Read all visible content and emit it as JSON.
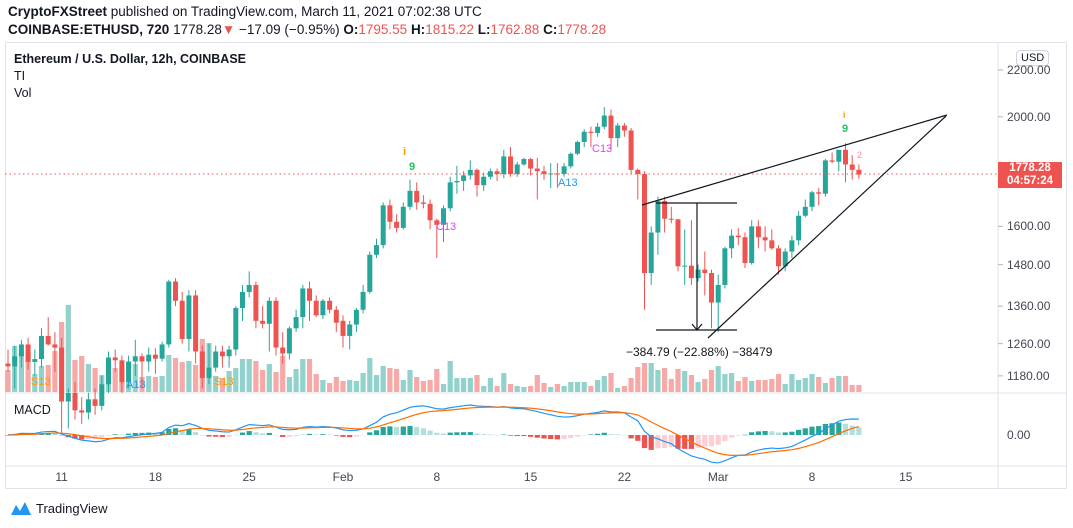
{
  "header": {
    "publisher": "CryptoFXStreet",
    "published_text": "published on TradingView.com, March 11, 2021 07:02:38 UTC",
    "symbol": "COINBASE:ETHUSD, 720",
    "last": "1778.28",
    "change": "−17.09 (−0.95%)",
    "open_label": "O:",
    "open": "1795.55",
    "high_label": "H:",
    "high": "1815.22",
    "low_label": "L:",
    "low": "1762.88",
    "close_label": "C:",
    "close": "1778.28"
  },
  "legend": {
    "title": "Ethereum / U.S. Dollar, 12h, COINBASE",
    "indicator1": "TI",
    "indicator2": "Vol",
    "macd": "MACD"
  },
  "price_axis": {
    "currency": "USD",
    "scale": "log",
    "ticks": [
      2200,
      2000,
      1600,
      1480,
      1360,
      1260,
      1180
    ],
    "tick_labels": [
      "2200.00",
      "2000.00",
      "1600.00",
      "1480.00",
      "1360.00",
      "1260.00",
      "1180.00"
    ],
    "current_price": "1778.28",
    "countdown": "04:57:24",
    "macd_tick": "0.00"
  },
  "time_axis": [
    "11",
    "18",
    "25",
    "Feb",
    "8",
    "15",
    "22",
    "Mar",
    "8",
    "15"
  ],
  "annotations": {
    "td_9_a": "9",
    "td_9_b": "9",
    "td_i_a": "i",
    "td_i_b": "i",
    "c13_a": "C13",
    "c13_b": "C13",
    "a13_a": "A13",
    "a13_b": "A13",
    "s13_a": "S13",
    "s13_b": "S13",
    "td_2": "2",
    "measure": "−384.79 (−22.88%) −38479"
  },
  "colors": {
    "up": "#26a69a",
    "down": "#ef5350",
    "macd": "#2196f3",
    "signal": "#ff6d00",
    "grid": "#f0f3fa"
  },
  "footer": {
    "brand": "TradingView"
  },
  "chart_data": {
    "type": "candlestick",
    "interval": "12h",
    "columns": [
      "open",
      "high",
      "low",
      "close",
      "volume_relative"
    ],
    "candles": [
      [
        1210,
        1245,
        1190,
        1203,
        22
      ],
      [
        1203,
        1255,
        1150,
        1228,
        46
      ],
      [
        1228,
        1270,
        1200,
        1258,
        39
      ],
      [
        1258,
        1275,
        1195,
        1214,
        39
      ],
      [
        1214,
        1245,
        1180,
        1221,
        18
      ],
      [
        1221,
        1300,
        1200,
        1280,
        26
      ],
      [
        1280,
        1330,
        1255,
        1258,
        27
      ],
      [
        1258,
        1290,
        1190,
        1250,
        41
      ],
      [
        1250,
        1275,
        1050,
        1120,
        70
      ],
      [
        1120,
        1150,
        1060,
        1140,
        87
      ],
      [
        1140,
        1165,
        1080,
        1100,
        32
      ],
      [
        1100,
        1130,
        1070,
        1095,
        36
      ],
      [
        1095,
        1140,
        1080,
        1125,
        28
      ],
      [
        1125,
        1150,
        1090,
        1110,
        24
      ],
      [
        1110,
        1180,
        1100,
        1160,
        17
      ],
      [
        1160,
        1240,
        1140,
        1225,
        29
      ],
      [
        1225,
        1245,
        1190,
        1218,
        24
      ],
      [
        1218,
        1230,
        1140,
        1165,
        24
      ],
      [
        1165,
        1230,
        1150,
        1215,
        29
      ],
      [
        1215,
        1270,
        1180,
        1228,
        28
      ],
      [
        1228,
        1235,
        1150,
        1215,
        15
      ],
      [
        1215,
        1250,
        1190,
        1232,
        16
      ],
      [
        1232,
        1248,
        1185,
        1222,
        15
      ],
      [
        1222,
        1265,
        1215,
        1258,
        16
      ],
      [
        1258,
        1435,
        1250,
        1430,
        37
      ],
      [
        1430,
        1440,
        1360,
        1375,
        34
      ],
      [
        1375,
        1400,
        1260,
        1272,
        30
      ],
      [
        1272,
        1405,
        1240,
        1390,
        31
      ],
      [
        1390,
        1405,
        1210,
        1240,
        27
      ],
      [
        1240,
        1255,
        1150,
        1175,
        53
      ],
      [
        1175,
        1260,
        1160,
        1200,
        49
      ],
      [
        1200,
        1255,
        1190,
        1240,
        16
      ],
      [
        1240,
        1255,
        1200,
        1228,
        14
      ],
      [
        1228,
        1255,
        1200,
        1245,
        21
      ],
      [
        1245,
        1360,
        1230,
        1355,
        24
      ],
      [
        1355,
        1420,
        1320,
        1400,
        33
      ],
      [
        1400,
        1460,
        1385,
        1420,
        33
      ],
      [
        1420,
        1430,
        1300,
        1320,
        31
      ],
      [
        1320,
        1360,
        1300,
        1312,
        22
      ],
      [
        1312,
        1385,
        1240,
        1375,
        28
      ],
      [
        1375,
        1385,
        1230,
        1250,
        20
      ],
      [
        1250,
        1290,
        1210,
        1235,
        36
      ],
      [
        1235,
        1305,
        1220,
        1300,
        15
      ],
      [
        1300,
        1350,
        1290,
        1330,
        23
      ],
      [
        1330,
        1420,
        1300,
        1410,
        33
      ],
      [
        1410,
        1430,
        1320,
        1375,
        33
      ],
      [
        1375,
        1390,
        1330,
        1335,
        18
      ],
      [
        1335,
        1380,
        1325,
        1375,
        12
      ],
      [
        1375,
        1385,
        1340,
        1350,
        9
      ],
      [
        1350,
        1360,
        1290,
        1315,
        15
      ],
      [
        1320,
        1335,
        1250,
        1280,
        11
      ],
      [
        1280,
        1320,
        1245,
        1310,
        12
      ],
      [
        1310,
        1355,
        1290,
        1350,
        11
      ],
      [
        1350,
        1420,
        1340,
        1400,
        19
      ],
      [
        1400,
        1520,
        1395,
        1510,
        34
      ],
      [
        1510,
        1560,
        1500,
        1540,
        17
      ],
      [
        1540,
        1680,
        1530,
        1670,
        26
      ],
      [
        1670,
        1690,
        1590,
        1615,
        24
      ],
      [
        1615,
        1640,
        1580,
        1595,
        23
      ],
      [
        1595,
        1680,
        1590,
        1665,
        12
      ],
      [
        1665,
        1760,
        1655,
        1720,
        22
      ],
      [
        1720,
        1750,
        1655,
        1680,
        15
      ],
      [
        1680,
        1705,
        1660,
        1675,
        11
      ],
      [
        1675,
        1690,
        1590,
        1620,
        12
      ],
      [
        1620,
        1625,
        1500,
        1605,
        23
      ],
      [
        1605,
        1670,
        1550,
        1660,
        8
      ],
      [
        1660,
        1770,
        1650,
        1750,
        31
      ],
      [
        1750,
        1810,
        1710,
        1755,
        14
      ],
      [
        1755,
        1790,
        1720,
        1775,
        14
      ],
      [
        1775,
        1830,
        1760,
        1795,
        14
      ],
      [
        1795,
        1800,
        1700,
        1740,
        17
      ],
      [
        1740,
        1785,
        1720,
        1770,
        6
      ],
      [
        1770,
        1800,
        1760,
        1790,
        14
      ],
      [
        1790,
        1800,
        1755,
        1780,
        6
      ],
      [
        1780,
        1870,
        1765,
        1845,
        19
      ],
      [
        1845,
        1880,
        1770,
        1780,
        8
      ],
      [
        1780,
        1825,
        1770,
        1815,
        6
      ],
      [
        1815,
        1840,
        1810,
        1835,
        5
      ],
      [
        1835,
        1840,
        1775,
        1800,
        6
      ],
      [
        1800,
        1840,
        1690,
        1790,
        17
      ],
      [
        1790,
        1810,
        1760,
        1780,
        9
      ],
      [
        1780,
        1820,
        1730,
        1782,
        5
      ],
      [
        1782,
        1820,
        1730,
        1780,
        8
      ],
      [
        1780,
        1820,
        1770,
        1808,
        6
      ],
      [
        1808,
        1860,
        1800,
        1855,
        10
      ],
      [
        1855,
        1905,
        1850,
        1900,
        10
      ],
      [
        1900,
        1950,
        1880,
        1940,
        10
      ],
      [
        1940,
        1960,
        1880,
        1935,
        6
      ],
      [
        1935,
        1975,
        1920,
        1960,
        12
      ],
      [
        1960,
        2040,
        1950,
        2005,
        16
      ],
      [
        2005,
        2030,
        1870,
        1915,
        19
      ],
      [
        1915,
        1975,
        1880,
        1965,
        4
      ],
      [
        1965,
        1975,
        1920,
        1945,
        6
      ],
      [
        1945,
        1955,
        1780,
        1795,
        14
      ],
      [
        1795,
        1800,
        1690,
        1780,
        25
      ],
      [
        1780,
        1790,
        1350,
        1455,
        29
      ],
      [
        1455,
        1600,
        1420,
        1580,
        29
      ],
      [
        1580,
        1700,
        1510,
        1685,
        22
      ],
      [
        1685,
        1700,
        1580,
        1625,
        24
      ],
      [
        1625,
        1665,
        1610,
        1623,
        13
      ],
      [
        1623,
        1625,
        1460,
        1475,
        23
      ],
      [
        1475,
        1590,
        1420,
        1477,
        21
      ],
      [
        1477,
        1620,
        1420,
        1440,
        17
      ],
      [
        1440,
        1480,
        1430,
        1465,
        10
      ],
      [
        1465,
        1520,
        1390,
        1455,
        13
      ],
      [
        1455,
        1465,
        1300,
        1370,
        22
      ],
      [
        1370,
        1450,
        1290,
        1420,
        26
      ],
      [
        1420,
        1535,
        1410,
        1530,
        18
      ],
      [
        1530,
        1590,
        1500,
        1570,
        19
      ],
      [
        1570,
        1595,
        1540,
        1565,
        11
      ],
      [
        1565,
        1580,
        1470,
        1485,
        15
      ],
      [
        1485,
        1620,
        1480,
        1600,
        11
      ],
      [
        1600,
        1620,
        1530,
        1565,
        12
      ],
      [
        1565,
        1600,
        1520,
        1555,
        12
      ],
      [
        1555,
        1590,
        1525,
        1530,
        13
      ],
      [
        1530,
        1540,
        1450,
        1475,
        18
      ],
      [
        1475,
        1530,
        1460,
        1520,
        8
      ],
      [
        1520,
        1570,
        1500,
        1555,
        18
      ],
      [
        1555,
        1650,
        1540,
        1635,
        12
      ],
      [
        1635,
        1690,
        1630,
        1665,
        14
      ],
      [
        1665,
        1720,
        1650,
        1715,
        18
      ],
      [
        1715,
        1730,
        1670,
        1710,
        15
      ],
      [
        1710,
        1835,
        1700,
        1830,
        9
      ],
      [
        1830,
        1860,
        1820,
        1825,
        14
      ],
      [
        1825,
        1870,
        1790,
        1870,
        16
      ],
      [
        1870,
        1895,
        1750,
        1815,
        16
      ],
      [
        1815,
        1850,
        1760,
        1795,
        7
      ],
      [
        1795.55,
        1815.22,
        1762.88,
        1778.28,
        7
      ]
    ],
    "macd": {
      "fast": 12,
      "slow": 26,
      "signal": 9
    },
    "drawings": {
      "rising_wedge_upper": [
        [
          1648,
          "Feb 23"
        ],
        [
          2000,
          "Mar 18"
        ]
      ],
      "rising_wedge_lower": [
        [
          1290,
          "Feb 28"
        ],
        [
          2000,
          "Mar 18"
        ]
      ],
      "price_range_measure": {
        "from": 1680,
        "to": 1295,
        "label": "−384.79 (−22.88%) −38479"
      }
    }
  }
}
